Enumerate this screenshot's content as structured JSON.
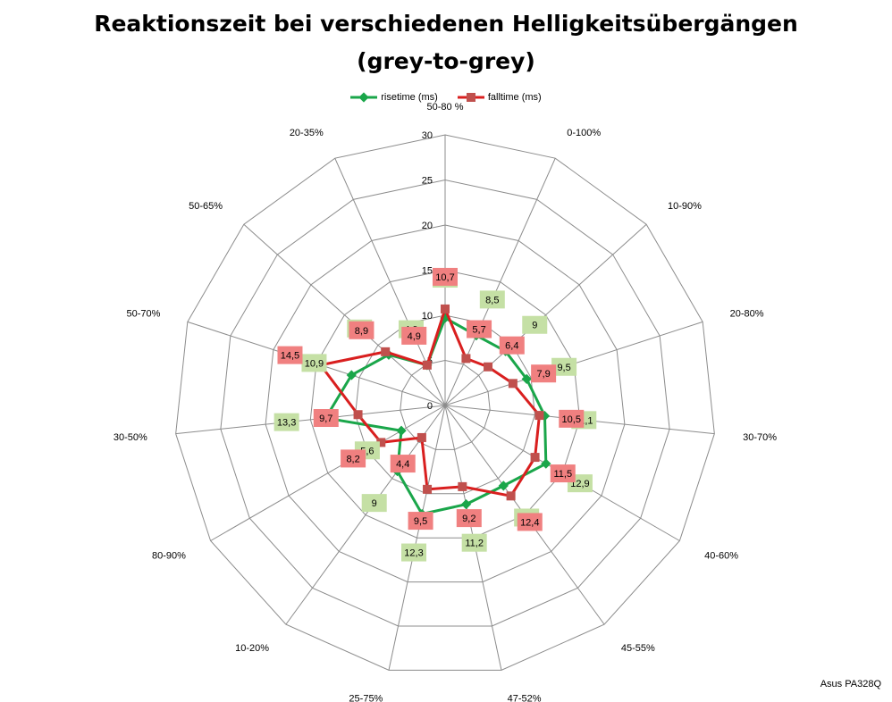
{
  "chart_data": {
    "type": "radar",
    "title": "Reaktionszeit bei verschiedenen Helligkeitsübergängen",
    "subtitle": "(grey-to-grey)",
    "categories": [
      "50-80 %",
      "0-100%",
      "10-90%",
      "20-80%",
      "30-70%",
      "40-60%",
      "45-55%",
      "47-52%",
      "25-75%",
      "10-20%",
      "80-90%",
      "30-50%",
      "50-70%",
      "50-65%",
      "20-35%"
    ],
    "radial_ticks": [
      "0",
      "5",
      "10",
      "15",
      "20",
      "25",
      "30"
    ],
    "rlim": [
      0,
      30
    ],
    "legend_position": "top",
    "series": [
      {
        "name": "risetime (ms)",
        "color": "#1aa64a",
        "label_bg": "#c5e0a5",
        "values": [
          9.7,
          8.5,
          9,
          9.5,
          11.1,
          12.9,
          11,
          11.2,
          12.3,
          9,
          5.6,
          13.3,
          10.9,
          8.4,
          4.9
        ],
        "labels": [
          "9,7",
          "8,5",
          "9",
          "9,5",
          "11,1",
          "12,9",
          "11",
          "11,2",
          "12,3",
          "9",
          "5,6",
          "13,3",
          "10,9",
          "8,4",
          "4,9"
        ]
      },
      {
        "name": "falltime (ms)",
        "color": "#d91f1f",
        "label_bg": "#f08080",
        "values": [
          10.7,
          5.7,
          6.4,
          7.9,
          10.5,
          11.5,
          12.4,
          9.2,
          9.5,
          4.4,
          8.2,
          9.7,
          14.5,
          8.9,
          4.9
        ],
        "labels": [
          "10,7",
          "5,7",
          "6,4",
          "7,9",
          "10,5",
          "11,5",
          "12,4",
          "9,2",
          "9,5",
          "4,4",
          "8,2",
          "9,7",
          "14,5",
          "8,9",
          "4,9"
        ]
      }
    ]
  },
  "footer": {
    "watermark": "Asus PA328Q"
  }
}
